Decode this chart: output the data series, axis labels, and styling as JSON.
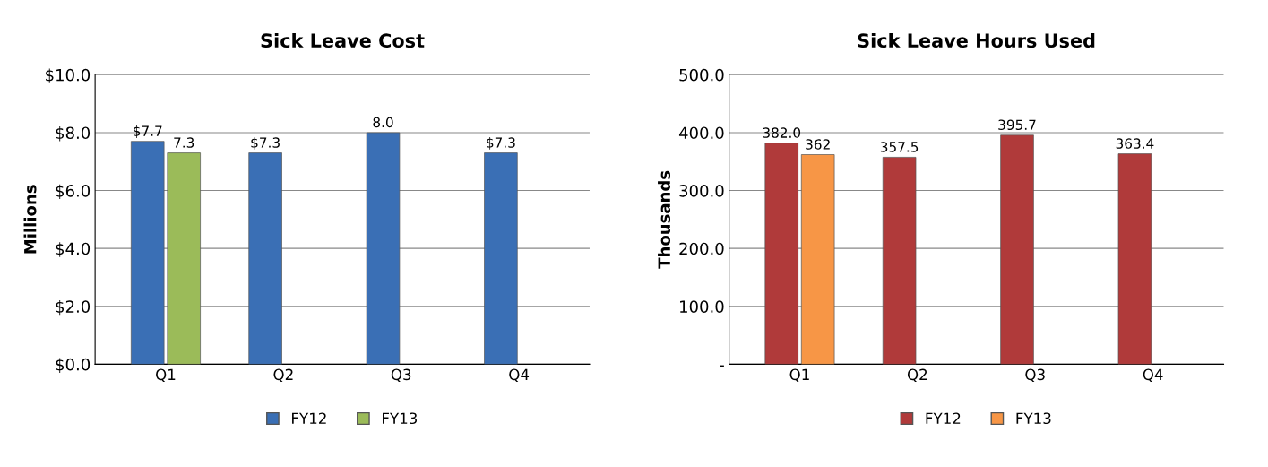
{
  "chart_data": [
    {
      "type": "bar",
      "title": "Sick Leave Cost",
      "ylabel": "Millions",
      "categories": [
        "Q1",
        "Q2",
        "Q3",
        "Q4"
      ],
      "series": [
        {
          "name": "FY12",
          "color": "#3a6fb5",
          "values": [
            7.7,
            7.3,
            8.0,
            7.3
          ],
          "value_labels": [
            "$7.7",
            "$7.3",
            "8.0",
            "$7.3"
          ]
        },
        {
          "name": "FY13",
          "color": "#9bbb59",
          "values": [
            7.3,
            null,
            null,
            null
          ],
          "value_labels": [
            "7.3",
            null,
            null,
            null
          ]
        }
      ],
      "ylim": [
        0,
        10
      ],
      "yticks": [
        {
          "value": 0,
          "label": "$0.0"
        },
        {
          "value": 2,
          "label": "$2.0"
        },
        {
          "value": 4,
          "label": "$4.0"
        },
        {
          "value": 6,
          "label": "$6.0"
        },
        {
          "value": 8,
          "label": "$8.0"
        },
        {
          "value": 10,
          "label": "$10.0"
        }
      ],
      "grid": "y",
      "legend": "bottom"
    },
    {
      "type": "bar",
      "title": "Sick Leave Hours Used",
      "ylabel": "Thousands",
      "categories": [
        "Q1",
        "Q2",
        "Q3",
        "Q4"
      ],
      "series": [
        {
          "name": "FY12",
          "color": "#b03a3a",
          "values": [
            382.0,
            357.5,
            395.7,
            363.4
          ],
          "value_labels": [
            "382.0",
            "357.5",
            "395.7",
            "363.4"
          ]
        },
        {
          "name": "FY13",
          "color": "#f79646",
          "values": [
            362,
            null,
            null,
            null
          ],
          "value_labels": [
            "362",
            null,
            null,
            null
          ]
        }
      ],
      "ylim": [
        0,
        500
      ],
      "yticks": [
        {
          "value": 0,
          "label": "-"
        },
        {
          "value": 100,
          "label": "100.0"
        },
        {
          "value": 200,
          "label": "200.0"
        },
        {
          "value": 300,
          "label": "300.0"
        },
        {
          "value": 400,
          "label": "400.0"
        },
        {
          "value": 500,
          "label": "500.0"
        }
      ],
      "grid": "y",
      "legend": "bottom"
    }
  ]
}
